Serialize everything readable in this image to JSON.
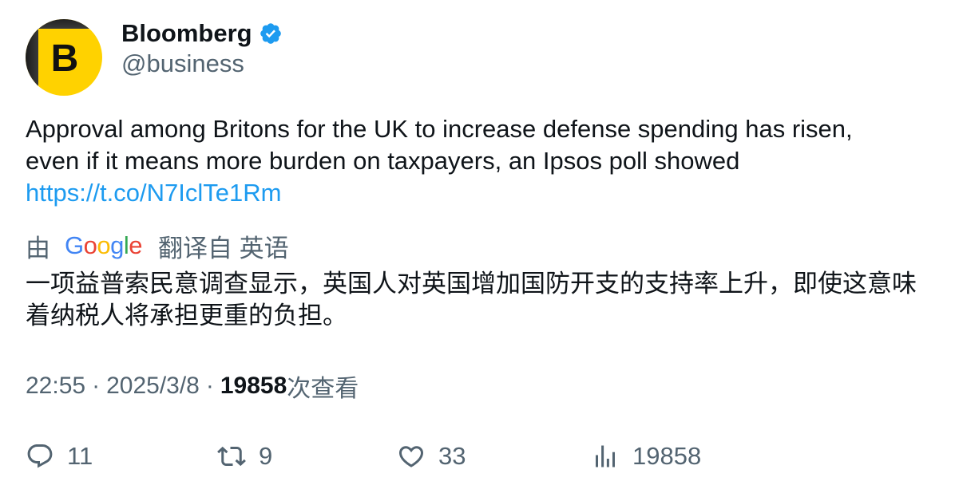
{
  "account": {
    "display_name": "Bloomberg",
    "handle": "@business",
    "avatar_letter": "B",
    "verified": true,
    "avatar_color": "#ffd200"
  },
  "tweet": {
    "text_line1": "Approval among Britons for the UK to increase defense spending has risen,",
    "text_line2": "even if it means more burden on taxpayers, an Ipsos poll showed",
    "link": "https://t.co/N7IclTe1Rm"
  },
  "translation": {
    "prefix": "由",
    "provider": "Google",
    "suffix": "翻译自 英语",
    "text": "一项益普索民意调查显示，英国人对英国增加国防开支的支持率上升，即使这意味着纳税人将承担更重的负担。"
  },
  "meta": {
    "time": "22:55",
    "separator": "·",
    "date": "2025/3/8",
    "views_count": "19858",
    "views_label": "次查看"
  },
  "actions": {
    "replies": "11",
    "retweets": "9",
    "likes": "33",
    "views": "19858"
  },
  "colors": {
    "link": "#1d9bf0",
    "secondary_text": "#536471",
    "verified_badge": "#1d9bf0"
  },
  "icons": [
    "verified-badge-icon",
    "reply-icon",
    "retweet-icon",
    "like-icon",
    "views-icon",
    "google-logo"
  ]
}
